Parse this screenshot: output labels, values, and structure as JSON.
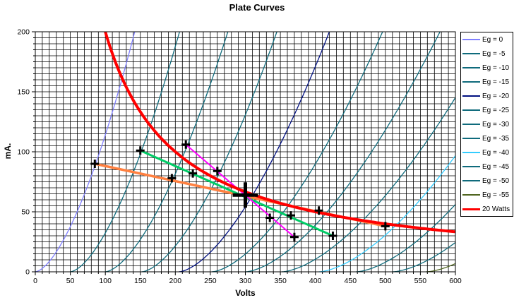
{
  "chart_data": {
    "type": "line",
    "title": "Plate Curves",
    "xlabel": "Volts",
    "ylabel": "mA.",
    "xlim": [
      0,
      600
    ],
    "ylim": [
      0,
      200
    ],
    "x_major_ticks": [
      0,
      50,
      100,
      150,
      200,
      250,
      300,
      350,
      400,
      450,
      500,
      550,
      600
    ],
    "y_major_ticks": [
      0,
      50,
      100,
      150,
      200
    ],
    "x_minor_step": 10,
    "y_minor_step": 5,
    "grid_color": "#000000",
    "legend_position": "right",
    "curve_exponent": 1.6,
    "eg_curves": [
      {
        "label": "Eg = 0",
        "color": "#8080FF",
        "v_cutoff": 0,
        "v_at_200mA": 142
      },
      {
        "label": "Eg = -5",
        "color": "#0F6B7C",
        "v_cutoff": 50,
        "v_at_200mA": 206
      },
      {
        "label": "Eg = -10",
        "color": "#0F6B7C",
        "v_cutoff": 100,
        "v_at_200mA": 275
      },
      {
        "label": "Eg = -15",
        "color": "#0F6B7C",
        "v_cutoff": 152,
        "v_at_200mA": 345
      },
      {
        "label": "Eg = -20",
        "color": "#001080",
        "v_cutoff": 205,
        "v_at_200mA": 420
      },
      {
        "label": "Eg = -25",
        "color": "#0F6B7C",
        "v_cutoff": 252,
        "v_at_200mA": 496
      },
      {
        "label": "Eg = -30",
        "color": "#0F6B7C",
        "v_cutoff": 300,
        "v_at_200mA": 578
      },
      {
        "label": "Eg = -35",
        "color": "#0F6B7C",
        "v_cutoff": 352,
        "v_at_200mA": 655
      },
      {
        "label": "Eg = -40",
        "color": "#33CCFF",
        "v_cutoff": 405,
        "v_at_200mA": 712
      },
      {
        "label": "Eg = -45",
        "color": "#0F6B7C",
        "v_cutoff": 458,
        "v_at_200mA": 772
      },
      {
        "label": "Eg = -50",
        "color": "#0F6B7C",
        "v_cutoff": 510,
        "v_at_200mA": 845
      },
      {
        "label": "Eg = -55",
        "color": "#4F641E",
        "v_cutoff": 558,
        "v_at_200mA": 905
      }
    ],
    "power_curve": {
      "label": "20 Watts",
      "color": "#FF0000",
      "watts": 20,
      "width": 4
    },
    "load_lines": [
      {
        "name": "load-line-orange",
        "color": "#FF8040",
        "width": 3.5,
        "points_v_ma": [
          [
            85,
            90
          ],
          [
            500,
            38
          ]
        ]
      },
      {
        "name": "load-line-green",
        "color": "#00CC66",
        "width": 3,
        "points_v_ma": [
          [
            150,
            101
          ],
          [
            425,
            30
          ]
        ]
      },
      {
        "name": "load-line-magenta",
        "color": "#FF00FF",
        "width": 2,
        "points_v_ma": [
          [
            215,
            106
          ],
          [
            370,
            29
          ]
        ]
      }
    ],
    "data_points": [
      {
        "v": 85,
        "ma": 90
      },
      {
        "v": 150,
        "ma": 101
      },
      {
        "v": 195,
        "ma": 78
      },
      {
        "v": 215,
        "ma": 106
      },
      {
        "v": 225,
        "ma": 82
      },
      {
        "v": 260,
        "ma": 84
      },
      {
        "v": 300,
        "ma": 64,
        "big": true
      },
      {
        "v": 335,
        "ma": 45
      },
      {
        "v": 365,
        "ma": 47
      },
      {
        "v": 370,
        "ma": 29
      },
      {
        "v": 405,
        "ma": 51
      },
      {
        "v": 425,
        "ma": 30
      },
      {
        "v": 500,
        "ma": 38
      }
    ],
    "marker_style": "black-plus"
  }
}
